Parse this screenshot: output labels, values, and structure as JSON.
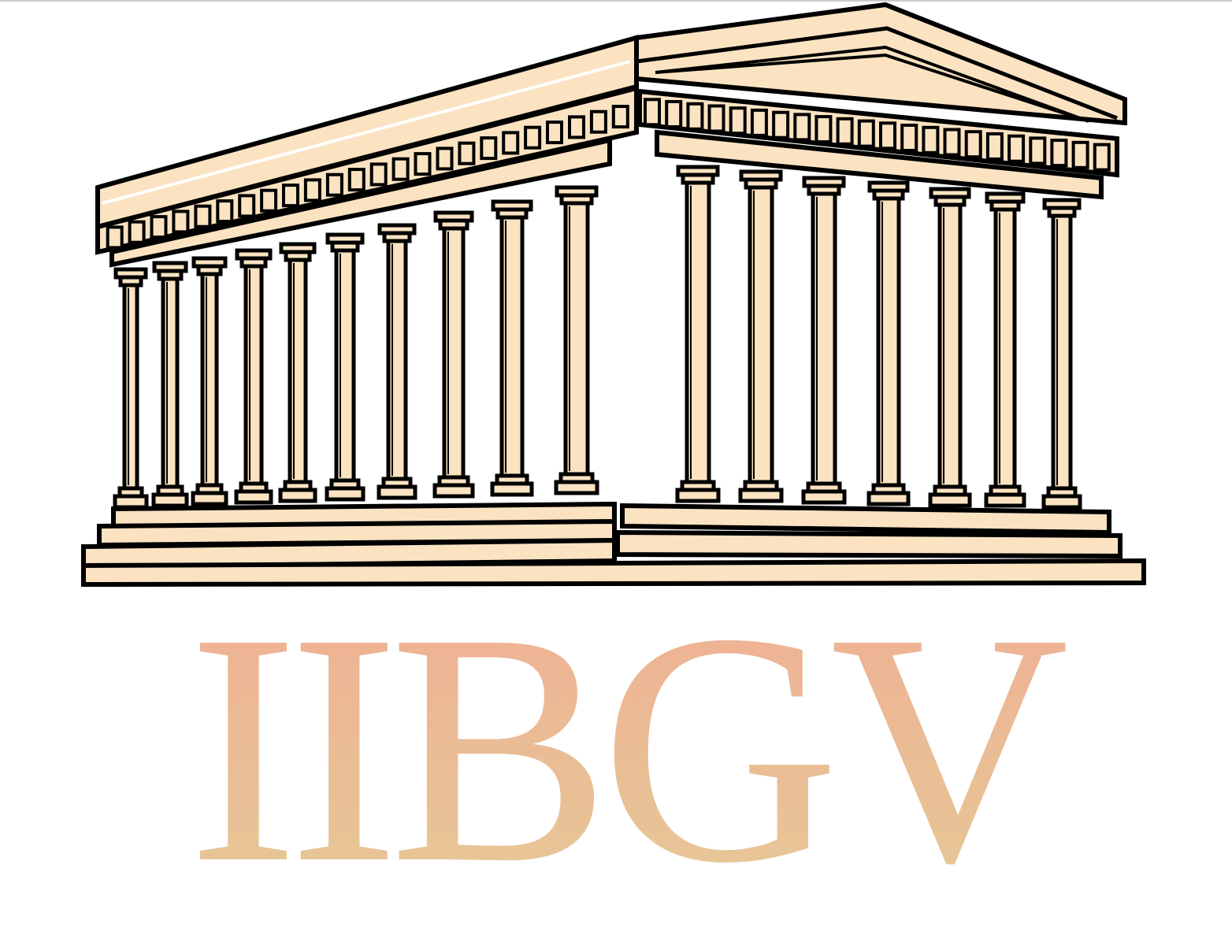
{
  "logo": {
    "wordmark": "IIBGV",
    "emblem": "temple-icon",
    "colors": {
      "stone": "#fbe3c1",
      "outline": "#000000",
      "wordmark_top": "#efb094",
      "wordmark_bottom": "#e6c896",
      "background": "#ffffff"
    }
  }
}
